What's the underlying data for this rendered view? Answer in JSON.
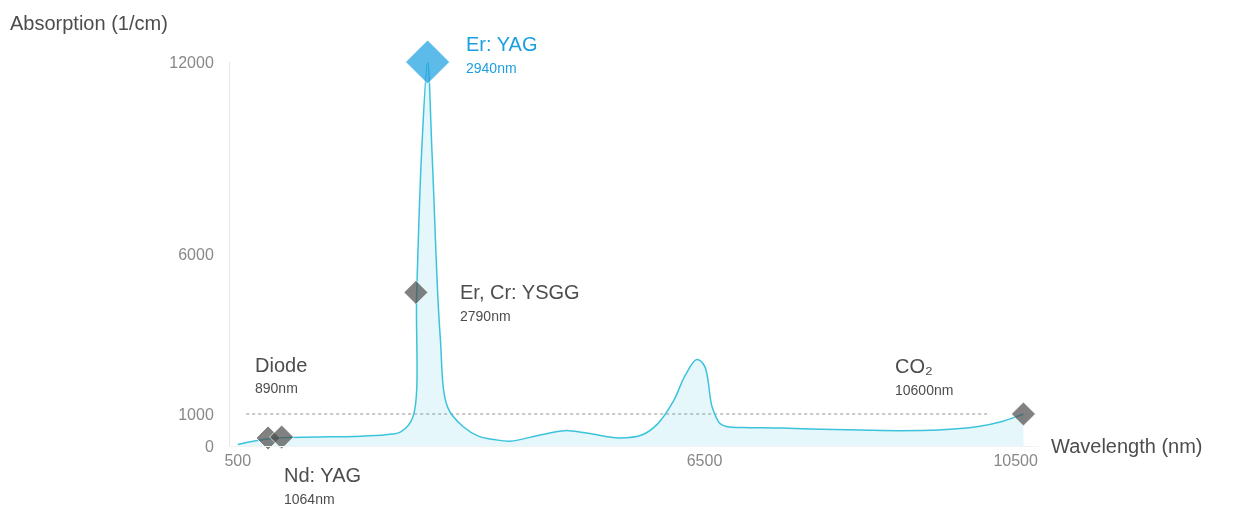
{
  "chart_data": {
    "type": "area",
    "xlabel": "Wavelength (nm)",
    "ylabel": "Absorption (1/cm)",
    "xlim": [
      400,
      10800
    ],
    "xticks": [
      500,
      6500,
      10500
    ],
    "ylim": [
      0,
      12000
    ],
    "yticks": [
      0,
      1000,
      6000,
      12000
    ],
    "grid": false,
    "series": [
      {
        "color": "#3cc3dc",
        "x": [
          500,
          700,
          1000,
          1500,
          2000,
          2400,
          2600,
          2750,
          2800,
          2860,
          2940,
          3000,
          3100,
          3200,
          3400,
          3600,
          3800,
          4000,
          4400,
          4700,
          5000,
          5400,
          5700,
          5900,
          6100,
          6250,
          6400,
          6500,
          6600,
          6700,
          6800,
          7000,
          7500,
          8000,
          8500,
          9000,
          9500,
          10000,
          10300,
          10600
        ],
        "values": [
          50,
          150,
          250,
          280,
          300,
          350,
          450,
          900,
          4800,
          9000,
          12000,
          9000,
          3500,
          1200,
          600,
          300,
          200,
          150,
          350,
          480,
          400,
          250,
          350,
          700,
          1400,
          2200,
          2700,
          2500,
          1200,
          700,
          600,
          580,
          560,
          520,
          500,
          480,
          500,
          600,
          750,
          1000
        ]
      },
      {
        "type": "scatter",
        "marker": "diamond",
        "x": [
          890,
          1064,
          2790,
          2940,
          10600
        ],
        "values": [
          250,
          280,
          4800,
          12000,
          1000
        ],
        "sizes": [
          0.3,
          0.3,
          0.3,
          1,
          0.3
        ],
        "colors": [
          "#4d4d4d",
          "#4d4d4d",
          "#4d4d4d",
          "#1a9fe0",
          "#4d4d4d"
        ]
      }
    ],
    "ref_lines": [
      {
        "axis": "y",
        "value": 1000,
        "color": "#c8c8c8",
        "line_style": "dotted"
      }
    ],
    "annotations": [
      "Diode",
      "890nm",
      "Nd: YAG",
      "1064nm",
      "Er, Cr: YSGG",
      "2790nm",
      "Er: YAG",
      "2940nm",
      "CO₂",
      "10600nm"
    ]
  }
}
